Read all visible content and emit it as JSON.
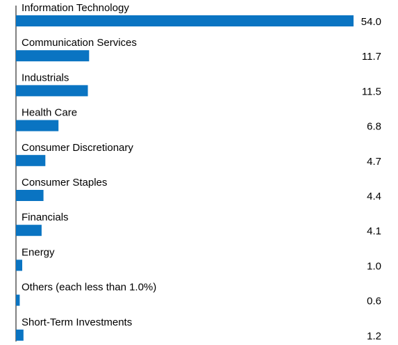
{
  "chart_data": {
    "type": "hbar",
    "categories": [
      "Information Technology",
      "Communication Services",
      "Industrials",
      "Health Care",
      "Consumer Discretionary",
      "Consumer Staples",
      "Financials",
      "Energy",
      "Others (each less than 1.0%)",
      "Short-Term Investments"
    ],
    "values": [
      54.0,
      11.7,
      11.5,
      6.8,
      4.7,
      4.4,
      4.1,
      1.0,
      0.6,
      1.2
    ],
    "value_labels": [
      "54.0",
      "11.7",
      "11.5",
      "6.8",
      "4.7",
      "4.4",
      "4.1",
      "1.0",
      "0.6",
      "1.2"
    ],
    "color": "#0a74c2"
  }
}
